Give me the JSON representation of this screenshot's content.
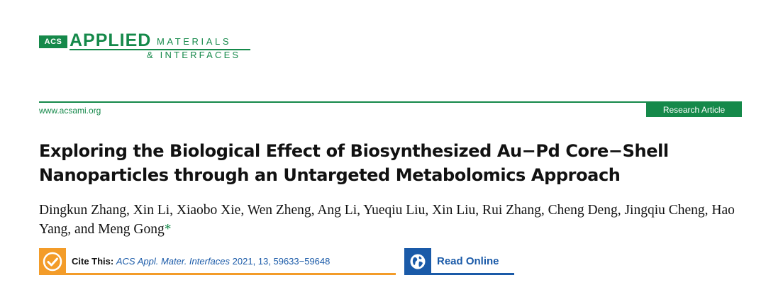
{
  "journal": {
    "publisher_mark": "ACS",
    "name_line1": "APPLIED",
    "name_line2": "MATERIALS",
    "name_line3": "& INTERFACES",
    "brand_color": "#15894a"
  },
  "header": {
    "url": "www.acsami.org",
    "article_type": "Research Article"
  },
  "article": {
    "title": "Exploring the Biological Effect of Biosynthesized Au−Pd Core−Shell Nanoparticles through an Untargeted Metabolomics Approach",
    "authors": "Dingkun Zhang, Xin Li, Xiaobo Xie, Wen Zheng, Ang Li, Yueqiu Liu, Xin Liu, Rui Zhang, Cheng Deng, Jingqiu Cheng, Hao Yang, and Meng Gong",
    "corresponding_mark": "*"
  },
  "cite": {
    "label": "Cite This:",
    "journal": "ACS Appl. Mater. Interfaces",
    "details": "2021, 13, 59633−59648",
    "icon": "check-icon",
    "accent_color": "#f39c29"
  },
  "read_online": {
    "label": "Read Online",
    "icon": "globe-icon",
    "accent_color": "#1a5aa8"
  }
}
